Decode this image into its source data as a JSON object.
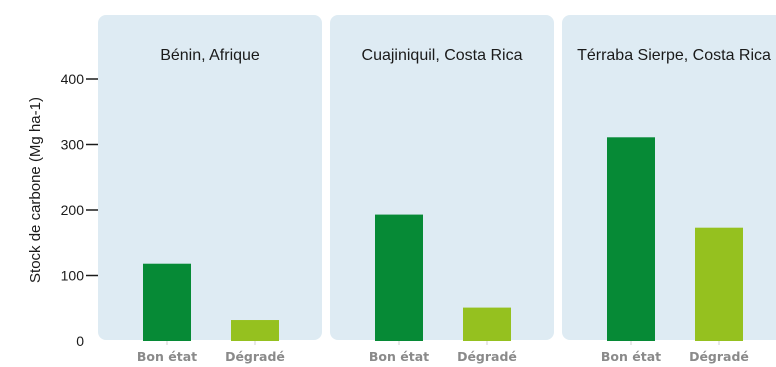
{
  "chart_data": {
    "type": "bar",
    "ylabel": "Stock de carbone (Mg ha-1)",
    "ylim": [
      0,
      500
    ],
    "yticks": [
      0,
      100,
      200,
      300,
      400
    ],
    "categories": [
      "Bon état",
      "Dégradé"
    ],
    "colors": {
      "Bon état": "#068a36",
      "Dégradé": "#95c11f",
      "panel_bg": "#deebf3"
    },
    "panels": [
      {
        "title": "Bénin, Afrique",
        "values": [
          118,
          32
        ]
      },
      {
        "title": "Cuajiniquil, Costa Rica",
        "values": [
          193,
          51
        ]
      },
      {
        "title": "Térraba Sierpe, Costa Rica",
        "values": [
          311,
          173
        ]
      }
    ]
  }
}
